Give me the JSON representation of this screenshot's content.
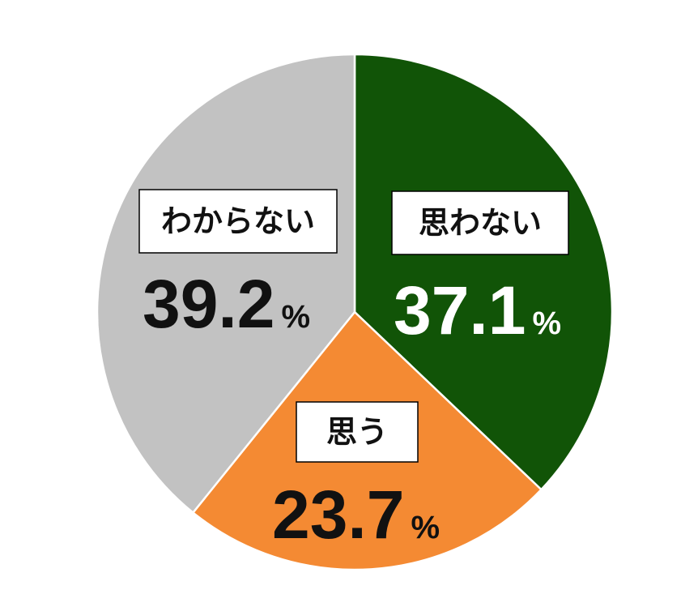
{
  "chart_data": {
    "type": "pie",
    "unit": "%",
    "slices": [
      {
        "label": "思わない",
        "value": 37.1,
        "display": "37.1",
        "color": "#115407",
        "value_color": "#ffffff"
      },
      {
        "label": "思う",
        "value": 23.7,
        "display": "23.7",
        "color": "#f48a33",
        "value_color": "#111111"
      },
      {
        "label": "わからない",
        "value": 39.2,
        "display": "39.2",
        "color": "#c2c2c2",
        "value_color": "#111111"
      }
    ]
  }
}
